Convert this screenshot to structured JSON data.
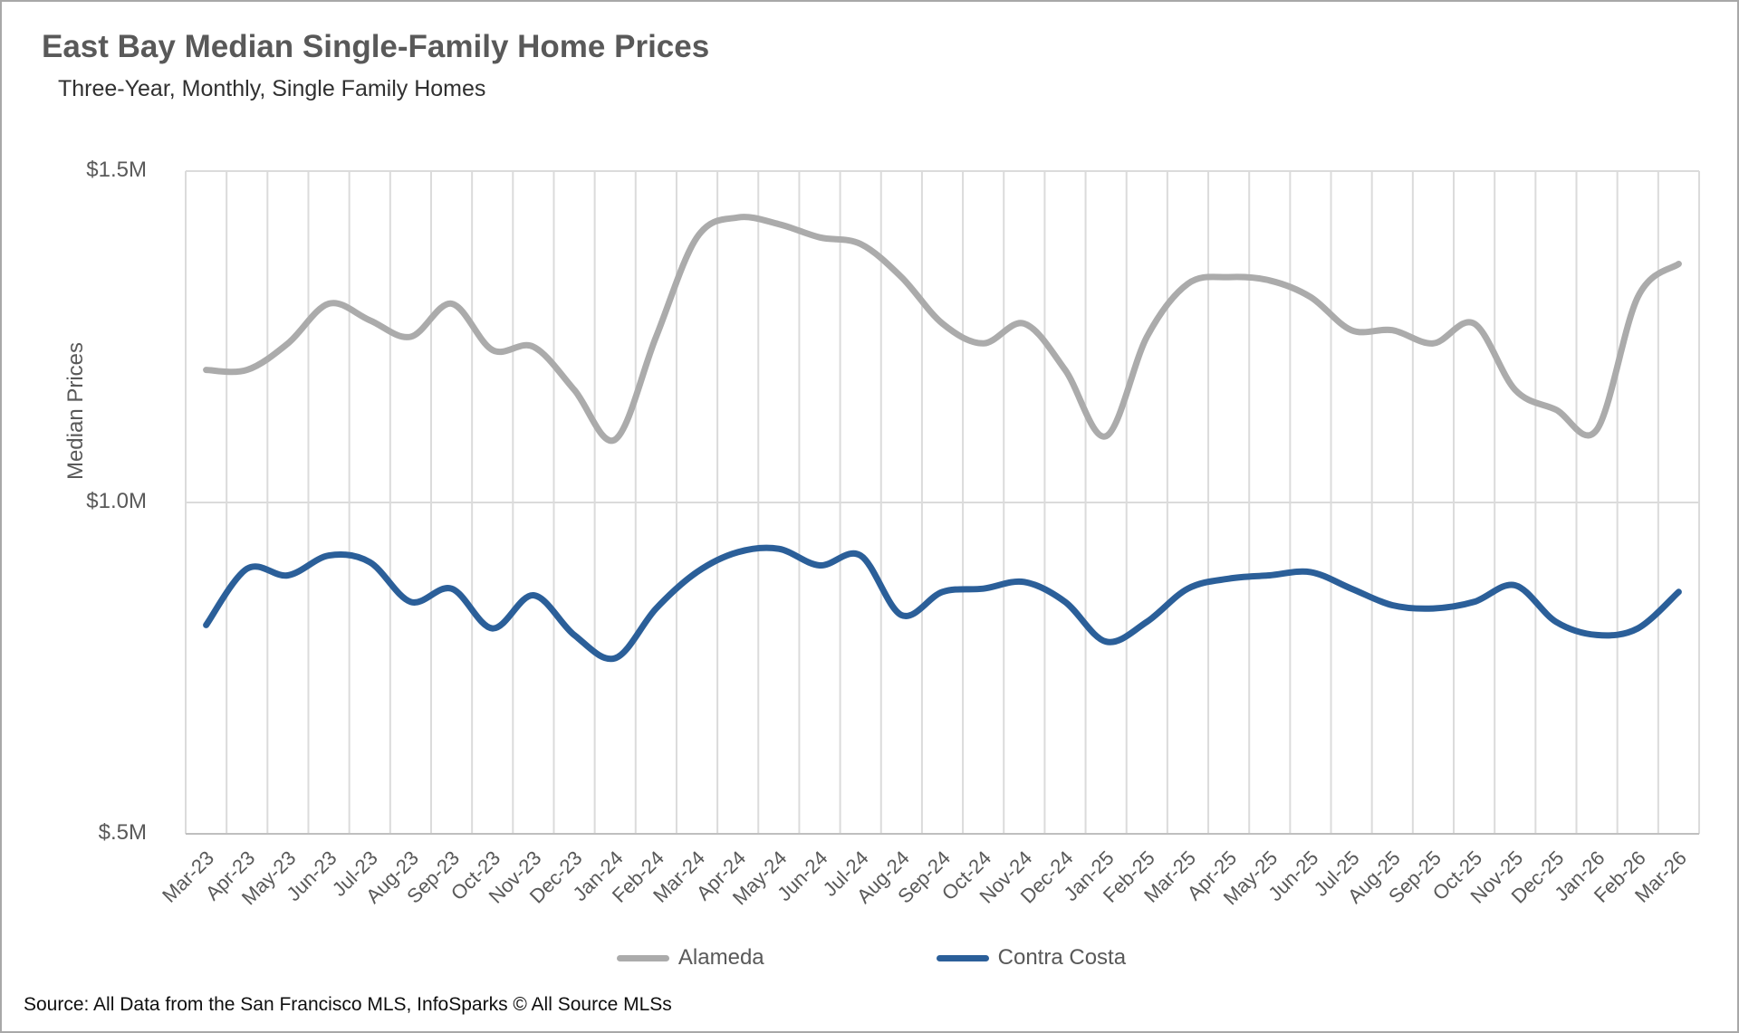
{
  "header": {
    "title": "East Bay Median Single-Family Home Prices",
    "subtitle": "Three-Year, Monthly, Single Family Homes"
  },
  "source_note": "Source: All Data from the San Francisco MLS, InfoSparks © All Source MLSs",
  "chart_data": {
    "type": "line",
    "title": "East Bay Median Single-Family Home Prices",
    "subtitle": "Three-Year, Monthly, Single Family Homes",
    "xlabel": "",
    "ylabel": "Median Prices",
    "ylim": [
      0.5,
      1.5
    ],
    "grid": "vertical-per-month-plus-horizontal-ticks",
    "legend_position": "bottom-center",
    "yticks": [
      {
        "label": "$1.5M",
        "value": 1.5
      },
      {
        "label": "$1.0M",
        "value": 1.0
      },
      {
        "label": "$.5M",
        "value": 0.5
      }
    ],
    "categories": [
      "Mar-23",
      "Apr-23",
      "May-23",
      "Jun-23",
      "Jul-23",
      "Aug-23",
      "Sep-23",
      "Oct-23",
      "Nov-23",
      "Dec-23",
      "Jan-24",
      "Feb-24",
      "Mar-24",
      "Apr-24",
      "May-24",
      "Jun-24",
      "Jul-24",
      "Aug-24",
      "Sep-24",
      "Oct-24",
      "Nov-24",
      "Dec-24",
      "Jan-25",
      "Feb-25",
      "Mar-25",
      "Apr-25",
      "May-25",
      "Jun-25",
      "Jul-25",
      "Aug-25",
      "Sep-25",
      "Oct-25",
      "Nov-25",
      "Dec-25",
      "Jan-26",
      "Feb-26",
      "Mar-26"
    ],
    "series": [
      {
        "name": "Alameda",
        "color": "#ABABAB",
        "unit": "million USD",
        "values": [
          1.2,
          1.2,
          1.24,
          1.3,
          1.275,
          1.25,
          1.3,
          1.23,
          1.235,
          1.17,
          1.095,
          1.25,
          1.4,
          1.43,
          1.42,
          1.4,
          1.39,
          1.34,
          1.27,
          1.24,
          1.27,
          1.2,
          1.1,
          1.25,
          1.33,
          1.34,
          1.335,
          1.31,
          1.26,
          1.26,
          1.24,
          1.27,
          1.17,
          1.14,
          1.11,
          1.31,
          1.36
        ]
      },
      {
        "name": "Contra Costa",
        "color": "#2B5F99",
        "unit": "million USD",
        "values": [
          0.815,
          0.9,
          0.89,
          0.92,
          0.91,
          0.85,
          0.87,
          0.81,
          0.86,
          0.8,
          0.765,
          0.84,
          0.895,
          0.925,
          0.93,
          0.905,
          0.92,
          0.83,
          0.865,
          0.87,
          0.88,
          0.85,
          0.79,
          0.82,
          0.87,
          0.885,
          0.89,
          0.895,
          0.87,
          0.845,
          0.84,
          0.85,
          0.875,
          0.82,
          0.8,
          0.81,
          0.865
        ]
      }
    ],
    "legend": [
      {
        "label": "Alameda",
        "color": "#ABABAB"
      },
      {
        "label": "Contra Costa",
        "color": "#2B5F99"
      }
    ],
    "style": {
      "gridline_color": "#DBDBDB",
      "axis_line_color": "#BFBFBF",
      "tick_label_color": "#595959",
      "line_width": 7
    }
  }
}
